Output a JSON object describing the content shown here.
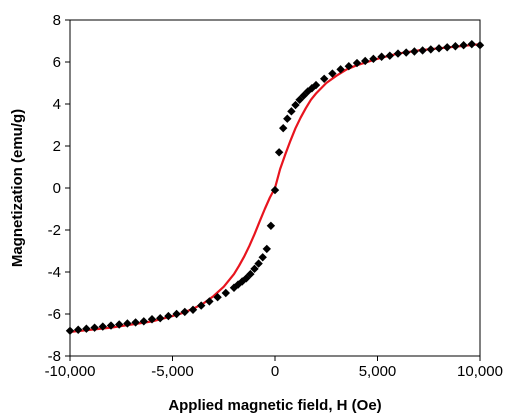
{
  "chart_data": {
    "type": "scatter",
    "title": "",
    "xlabel": "Applied magnetic field, H (Oe)",
    "ylabel": "Magnetization (emu/g)",
    "xlim": [
      -10000,
      10000
    ],
    "ylim": [
      -8,
      8
    ],
    "x_ticks": [
      -10000,
      -5000,
      0,
      5000,
      10000
    ],
    "x_tick_labels": [
      "-10,000",
      "-5,000",
      "0",
      "5,000",
      "10,000"
    ],
    "y_ticks": [
      -8,
      -6,
      -4,
      -2,
      0,
      2,
      4,
      6,
      8
    ],
    "y_tick_labels": [
      "-8",
      "-6",
      "-4",
      "-2",
      "0",
      "2",
      "4",
      "6",
      "8"
    ],
    "grid": false,
    "legend": false,
    "series": [
      {
        "kind": "scatter",
        "marker": "diamond",
        "color": "#000000",
        "x": [
          -10000,
          -9600,
          -9200,
          -8800,
          -8400,
          -8000,
          -7600,
          -7200,
          -6800,
          -6400,
          -6000,
          -5600,
          -5200,
          -4800,
          -4400,
          -4000,
          -3600,
          -3200,
          -2800,
          -2400,
          -2000,
          -1800,
          -1600,
          -1400,
          -1200,
          -1000,
          -800,
          -600,
          -400,
          -200,
          0,
          200,
          400,
          600,
          800,
          1000,
          1200,
          1400,
          1600,
          1800,
          2000,
          2400,
          2800,
          3200,
          3600,
          4000,
          4400,
          4800,
          5200,
          5600,
          6000,
          6400,
          6800,
          7200,
          7600,
          8000,
          8400,
          8800,
          9200,
          9600,
          10000
        ],
        "y": [
          -6.8,
          -6.75,
          -6.7,
          -6.65,
          -6.6,
          -6.55,
          -6.5,
          -6.45,
          -6.4,
          -6.35,
          -6.25,
          -6.2,
          -6.1,
          -6.0,
          -5.9,
          -5.8,
          -5.6,
          -5.4,
          -5.2,
          -5.0,
          -4.75,
          -4.6,
          -4.45,
          -4.3,
          -4.1,
          -3.85,
          -3.6,
          -3.3,
          -2.9,
          -1.8,
          -0.1,
          1.7,
          2.85,
          3.3,
          3.65,
          3.95,
          4.2,
          4.4,
          4.6,
          4.75,
          4.9,
          5.2,
          5.45,
          5.65,
          5.8,
          5.95,
          6.05,
          6.15,
          6.25,
          6.3,
          6.4,
          6.45,
          6.5,
          6.55,
          6.6,
          6.65,
          6.7,
          6.75,
          6.8,
          6.85,
          6.8
        ]
      },
      {
        "kind": "line",
        "color": "#e8141e",
        "x": [
          -10000,
          -9000,
          -8000,
          -7000,
          -6000,
          -5000,
          -4500,
          -4000,
          -3500,
          -3000,
          -2500,
          -2000,
          -1750,
          -1500,
          -1250,
          -1000,
          -750,
          -500,
          -250,
          0,
          250,
          500,
          750,
          1000,
          1250,
          1500,
          1750,
          2000,
          2500,
          3000,
          3500,
          4000,
          4500,
          5000,
          6000,
          7000,
          8000,
          9000,
          10000
        ],
        "y": [
          -6.85,
          -6.75,
          -6.65,
          -6.5,
          -6.35,
          -6.1,
          -5.95,
          -5.75,
          -5.5,
          -5.15,
          -4.7,
          -4.1,
          -3.7,
          -3.25,
          -2.75,
          -2.2,
          -1.6,
          -1.0,
          -0.45,
          0.0,
          0.9,
          1.6,
          2.25,
          2.85,
          3.35,
          3.8,
          4.2,
          4.5,
          5.0,
          5.35,
          5.65,
          5.85,
          6.0,
          6.15,
          6.4,
          6.55,
          6.65,
          6.75,
          6.85
        ]
      }
    ]
  }
}
